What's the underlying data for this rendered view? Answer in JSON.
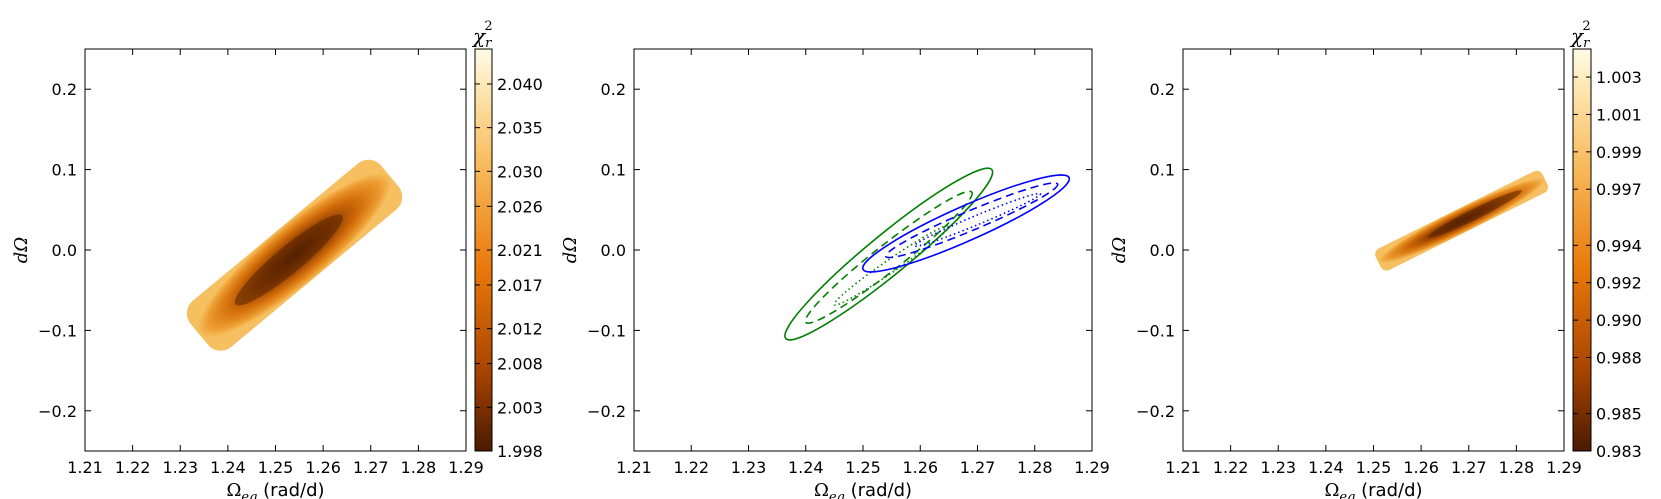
{
  "chart_data": [
    {
      "type": "heatmap",
      "title": "",
      "xlabel_symbol": "Ω",
      "xlabel_sub": "eq",
      "xlabel_unit": " (rad/d)",
      "ylabel": "dΩ",
      "xlim": [
        1.21,
        1.29
      ],
      "ylim": [
        -0.25,
        0.25
      ],
      "xticks": [
        "1.21",
        "1.22",
        "1.23",
        "1.24",
        "1.25",
        "1.26",
        "1.27",
        "1.28",
        "1.29"
      ],
      "yticks": [
        "−0.2",
        "−0.1",
        "0.0",
        "0.1",
        "0.2"
      ],
      "region": {
        "description_points": [
          [
            1.234,
            -0.105
          ],
          [
            1.274,
            0.092
          ]
        ],
        "center": [
          1.254,
          -0.01
        ],
        "min_color": "#5a2400",
        "edge_color": "#f4b450"
      },
      "colorbar": {
        "label_symbol": "χ",
        "label_sub": "r",
        "label_sup": "2",
        "min": 1.998,
        "max": 2.044,
        "ticks": [
          "1.998",
          "2.003",
          "2.008",
          "2.012",
          "2.017",
          "2.021",
          "2.026",
          "2.030",
          "2.035",
          "2.040"
        ],
        "tick_values": [
          1.998,
          2.003,
          2.008,
          2.012,
          2.017,
          2.021,
          2.026,
          2.03,
          2.035,
          2.04
        ]
      }
    },
    {
      "type": "line",
      "title": "",
      "xlabel_symbol": "Ω",
      "xlabel_sub": "eq",
      "xlabel_unit": " (rad/d)",
      "ylabel": "dΩ",
      "xlim": [
        1.21,
        1.29
      ],
      "ylim": [
        -0.25,
        0.25
      ],
      "xticks": [
        "1.21",
        "1.22",
        "1.23",
        "1.24",
        "1.25",
        "1.26",
        "1.27",
        "1.28",
        "1.29"
      ],
      "yticks": [
        "−0.2",
        "−0.1",
        "0.0",
        "0.1",
        "0.2"
      ],
      "series": [
        {
          "color": "#007f00",
          "style": "solid",
          "center": [
            1.2545,
            -0.005
          ],
          "p1": [
            1.2365,
            -0.11
          ],
          "p2": [
            1.2725,
            0.1
          ],
          "minor_half": 0.0035
        },
        {
          "color": "#007f00",
          "style": "dashed",
          "center": [
            1.2545,
            -0.01
          ],
          "p1": [
            1.24,
            -0.09
          ],
          "p2": [
            1.269,
            0.072
          ],
          "minor_half": 0.0023
        },
        {
          "color": "#007f00",
          "style": "dotted",
          "center": [
            1.255,
            -0.02
          ],
          "p1": [
            1.245,
            -0.068
          ],
          "p2": [
            1.265,
            0.03
          ],
          "minor_half": 0.0011
        },
        {
          "color": "#0000ff",
          "style": "solid",
          "center": [
            1.268,
            0.033
          ],
          "p1": [
            1.25,
            -0.024
          ],
          "p2": [
            1.286,
            0.09
          ],
          "minor_half": 0.003
        },
        {
          "color": "#0000ff",
          "style": "dashed",
          "center": [
            1.269,
            0.034
          ],
          "p1": [
            1.254,
            -0.008
          ],
          "p2": [
            1.284,
            0.082
          ],
          "minor_half": 0.0017
        },
        {
          "color": "#0000ff",
          "style": "dotted",
          "center": [
            1.27,
            0.036
          ],
          "p1": [
            1.259,
            0.005
          ],
          "p2": [
            1.281,
            0.07
          ],
          "minor_half": 0.0008
        }
      ]
    },
    {
      "type": "heatmap",
      "title": "",
      "xlabel_symbol": "Ω",
      "xlabel_sub": "eq",
      "xlabel_unit": " (rad/d)",
      "ylabel": "dΩ",
      "xlim": [
        1.21,
        1.29
      ],
      "ylim": [
        -0.25,
        0.25
      ],
      "xticks": [
        "1.21",
        "1.22",
        "1.23",
        "1.24",
        "1.25",
        "1.26",
        "1.27",
        "1.28",
        "1.29"
      ],
      "yticks": [
        "−0.2",
        "−0.1",
        "0.0",
        "0.1",
        "0.2"
      ],
      "region": {
        "description_points": [
          [
            1.251,
            -0.015
          ],
          [
            1.286,
            0.088
          ]
        ],
        "center": [
          1.2715,
          0.05
        ],
        "min_color": "#5a2400",
        "edge_color": "#f4b450"
      },
      "colorbar": {
        "label_symbol": "χ",
        "label_sub": "r",
        "label_sup": "2",
        "min": 0.983,
        "max": 1.0045,
        "ticks": [
          "0.983",
          "0.985",
          "0.988",
          "0.990",
          "0.992",
          "0.994",
          "0.997",
          "0.999",
          "1.001",
          "1.003"
        ],
        "tick_values": [
          0.983,
          0.985,
          0.988,
          0.99,
          0.992,
          0.994,
          0.997,
          0.999,
          1.001,
          1.003
        ]
      }
    }
  ]
}
